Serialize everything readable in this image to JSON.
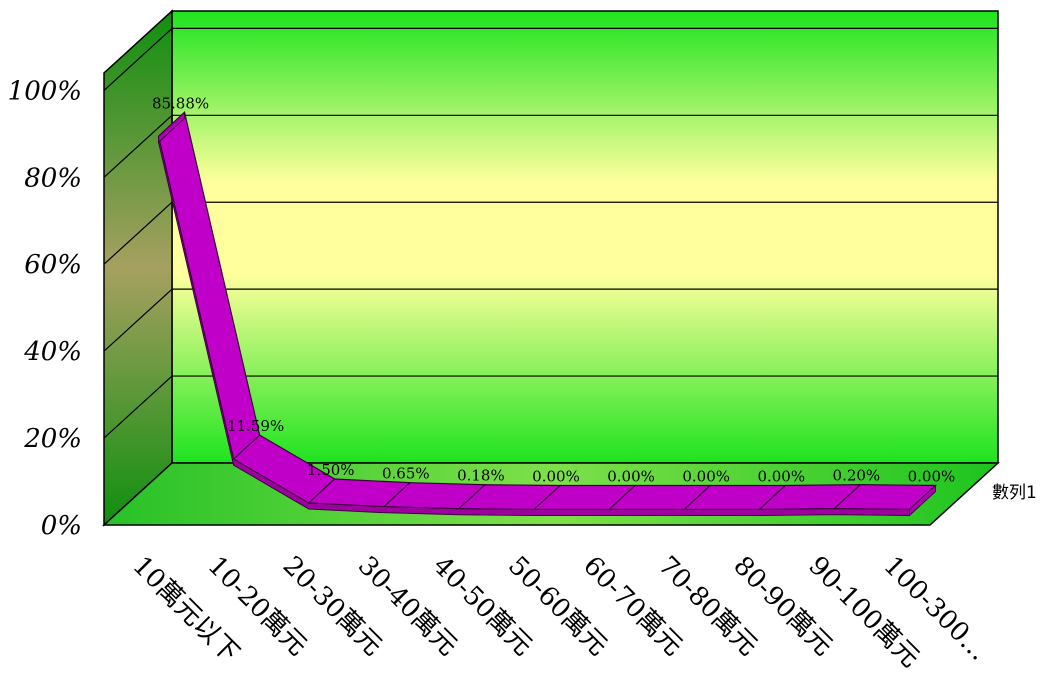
{
  "chart_data": {
    "type": "line",
    "style": "3d-ribbon",
    "categories": [
      "10萬元以下",
      "10-20萬元",
      "20-30萬元",
      "30-40萬元",
      "40-50萬元",
      "50-60萬元",
      "60-70萬元",
      "70-80萬元",
      "80-90萬元",
      "90-100萬元",
      "100-300…"
    ],
    "series": [
      {
        "name": "數列1",
        "values": [
          85.88,
          11.59,
          1.5,
          0.65,
          0.18,
          0.0,
          0.0,
          0.0,
          0.0,
          0.2,
          0.0
        ],
        "labels": [
          "85.88%",
          "11.59%",
          "1.50%",
          "0.65%",
          "0.18%",
          "0.00%",
          "0.00%",
          "0.00%",
          "0.00%",
          "0.20%",
          "0.00%"
        ]
      }
    ],
    "y_ticks": [
      "0%",
      "20%",
      "40%",
      "60%",
      "80%",
      "100%"
    ],
    "ylim": [
      0,
      100
    ],
    "grid": true,
    "legend": "right",
    "colors": {
      "series": "#c000c8",
      "series_edge": "#3a003a",
      "back_wall_top": "#22e822",
      "back_wall_mid": "#ffff9e",
      "side_wall": "#2a9d2a",
      "floor": "#22d022"
    }
  }
}
